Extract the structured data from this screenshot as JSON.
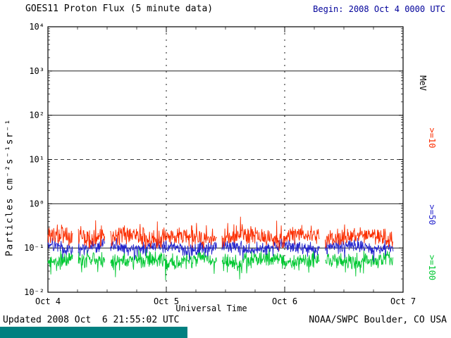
{
  "header": {
    "title": "GOES11 Proton Flux (5 minute data)",
    "begin_label": "Begin: 2008 Oct 4 0000 UTC"
  },
  "footer": {
    "updated": "Updated 2008 Oct  6 21:55:02 UTC",
    "credit": "NOAA/SWPC Boulder, CO USA"
  },
  "colors": {
    "begin_text": "#00009a",
    "axis": "#000000",
    "teal_bar": "#008080",
    "background": "#ffffff"
  },
  "chart_data": {
    "type": "line",
    "title": "GOES11 Proton Flux (5 minute data)",
    "xlabel": "Universal Time",
    "ylabel": "Particles cm⁻²s⁻¹sr⁻¹",
    "right_axis_label": "MeV",
    "y_scale": "log10",
    "y_log_range": [
      -2,
      4
    ],
    "y_tick_labels": [
      "10⁴",
      "10³",
      "10²",
      "10¹",
      "10⁰",
      "10⁻¹",
      "10⁻²"
    ],
    "y_tick_exponents": [
      4,
      3,
      2,
      1,
      0,
      -1,
      -2
    ],
    "solid_gridline_exponents": [
      3,
      2,
      0,
      -1
    ],
    "dashed_gridline_exponents": [
      1
    ],
    "vertical_gridline_days": [
      1,
      2
    ],
    "x_ticks": [
      "Oct 4",
      "Oct 5",
      "Oct 6",
      "Oct 7"
    ],
    "x_range_days": 3,
    "x_minor_tick_hours": 6,
    "grid": true,
    "legend_position": "right-rotated-labels",
    "samples": 840,
    "data_end_fraction": 0.972,
    "gaps": [
      [
        0.07,
        0.085
      ],
      [
        0.16,
        0.175
      ],
      [
        0.475,
        0.49
      ],
      [
        0.765,
        0.78
      ]
    ],
    "series": [
      {
        "key": "ge10",
        "label": ">=10",
        "color": "#fb2d00",
        "log10_mean": -0.76,
        "log10_std": 0.17,
        "approx_range": [
          0.06,
          0.45
        ]
      },
      {
        "key": "ge50",
        "label": ">=50",
        "color": "#2222cc",
        "log10_mean": -0.98,
        "log10_std": 0.12,
        "approx_range": [
          0.04,
          0.2
        ]
      },
      {
        "key": "ge100",
        "label": ">=100",
        "color": "#00c832",
        "log10_mean": -1.28,
        "log10_std": 0.16,
        "approx_range": [
          0.015,
          0.1
        ]
      }
    ]
  }
}
